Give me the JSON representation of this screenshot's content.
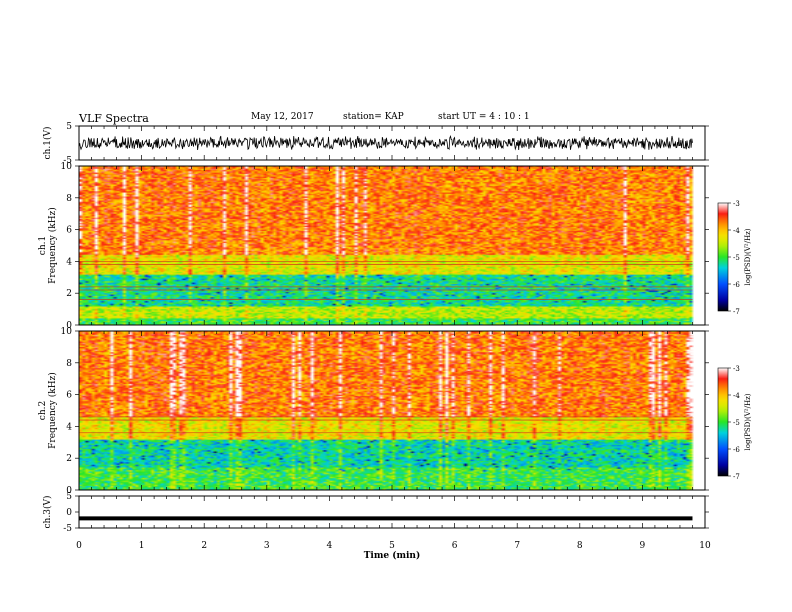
{
  "header": {
    "title": "VLF Spectra",
    "date": "May 12, 2017",
    "station": "station= KAP",
    "start": "start  UT =   4 : 10 : 1"
  },
  "chart_data": [
    {
      "type": "line",
      "name": "ch1-waveform",
      "ylabel": "ch.1(V)",
      "xlim": [
        0,
        10
      ],
      "ylim": [
        -5,
        5
      ],
      "yticks": [
        -5,
        5
      ],
      "noise_amplitude_v": 1.8,
      "data_end_min": 9.8
    },
    {
      "type": "heatmap",
      "name": "ch1-spectrogram",
      "ylabel": "ch.1\nFrequency (kHz)",
      "xlim": [
        0,
        10
      ],
      "ylim": [
        0,
        10
      ],
      "yticks": [
        0,
        2,
        4,
        6,
        8,
        10
      ],
      "data_end_min": 9.8,
      "colorbar": {
        "label": "log(PSD)(V²/Hz)",
        "range": [
          -7,
          -3
        ],
        "ticks": [
          -7,
          -6,
          -5,
          -4,
          -3
        ]
      },
      "bands": [
        {
          "freq_khz": [
            0,
            0.4
          ],
          "log_psd": -5.0
        },
        {
          "freq_khz": [
            0.4,
            1.2
          ],
          "log_psd": -4.5
        },
        {
          "freq_khz": [
            1.2,
            3.2
          ],
          "log_psd": -5.2
        },
        {
          "freq_khz": [
            3.2,
            4.4
          ],
          "log_psd": -4.3
        },
        {
          "freq_khz": [
            4.4,
            10
          ],
          "log_psd": -3.7
        }
      ],
      "horizontal_lines_khz": [
        1.6,
        2.2,
        2.4,
        3.8,
        4.0
      ]
    },
    {
      "type": "heatmap",
      "name": "ch2-spectrogram",
      "ylabel": "ch.2\nFrequency (kHz)",
      "xlim": [
        0,
        10
      ],
      "ylim": [
        0,
        10
      ],
      "yticks": [
        0,
        2,
        4,
        6,
        8,
        10
      ],
      "data_end_min": 9.8,
      "colorbar": {
        "label": "log(PSD)(V²/Hz)",
        "range": [
          -7,
          -3
        ],
        "ticks": [
          -7,
          -6,
          -5,
          -4,
          -3
        ]
      },
      "bands": [
        {
          "freq_khz": [
            0,
            0.4
          ],
          "log_psd": -5.0
        },
        {
          "freq_khz": [
            0.4,
            1.4
          ],
          "log_psd": -5.0
        },
        {
          "freq_khz": [
            1.4,
            3.2
          ],
          "log_psd": -5.3
        },
        {
          "freq_khz": [
            3.2,
            4.6
          ],
          "log_psd": -4.3
        },
        {
          "freq_khz": [
            4.6,
            10
          ],
          "log_psd": -3.7
        }
      ],
      "horizontal_lines_khz": [
        3.6,
        4.4,
        4.6
      ]
    },
    {
      "type": "line",
      "name": "ch3-waveform",
      "ylabel": "ch.3(V)",
      "xlabel": "Time (min)",
      "xlim": [
        0,
        10
      ],
      "ylim": [
        -5,
        5
      ],
      "yticks": [
        -5,
        0,
        5
      ],
      "xticks": [
        0,
        1,
        2,
        3,
        4,
        5,
        6,
        7,
        8,
        9,
        10
      ],
      "constant_level_v": -2,
      "data_end_min": 9.8
    }
  ]
}
